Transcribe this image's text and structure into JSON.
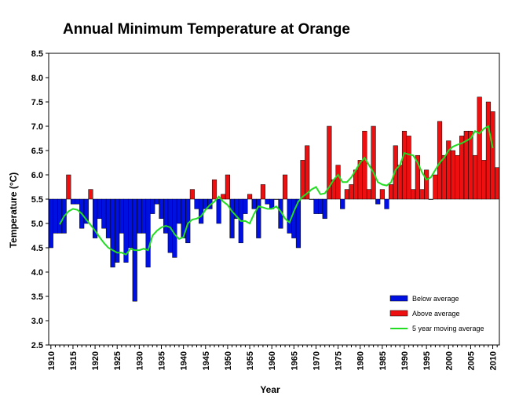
{
  "colors": {
    "below": "#0010e0",
    "above": "#ee1010",
    "moving_average": "#22dd22",
    "axis": "#000000",
    "background": "#ffffff"
  },
  "chart_data": {
    "type": "bar",
    "title": "Annual Minimum Temperature at Orange",
    "xlabel": "Year",
    "ylabel": "Temperature (°C)",
    "ylim": [
      2.5,
      8.5
    ],
    "xlim": [
      1909.5,
      2011.5
    ],
    "baseline": 5.5,
    "yticks": [
      "2.5",
      "3.0",
      "3.5",
      "4.0",
      "4.5",
      "5.0",
      "5.5",
      "6.0",
      "6.5",
      "7.0",
      "7.5",
      "8.0",
      "8.5"
    ],
    "xticks": [
      "1910",
      "1915",
      "1920",
      "1925",
      "1930",
      "1935",
      "1940",
      "1945",
      "1950",
      "1955",
      "1960",
      "1965",
      "1970",
      "1975",
      "1980",
      "1985",
      "1990",
      "1995",
      "2000",
      "2005",
      "2010"
    ],
    "grid": false,
    "legend_position": "bottom-right",
    "categories": [
      1910,
      1911,
      1912,
      1913,
      1914,
      1915,
      1916,
      1917,
      1918,
      1919,
      1920,
      1921,
      1922,
      1923,
      1924,
      1925,
      1926,
      1927,
      1928,
      1929,
      1930,
      1931,
      1932,
      1933,
      1934,
      1935,
      1936,
      1937,
      1938,
      1939,
      1940,
      1941,
      1942,
      1943,
      1944,
      1945,
      1946,
      1947,
      1948,
      1949,
      1950,
      1951,
      1952,
      1953,
      1954,
      1955,
      1956,
      1957,
      1958,
      1959,
      1960,
      1961,
      1962,
      1963,
      1964,
      1965,
      1966,
      1967,
      1968,
      1969,
      1970,
      1971,
      1972,
      1973,
      1974,
      1975,
      1976,
      1977,
      1978,
      1979,
      1980,
      1981,
      1982,
      1983,
      1984,
      1985,
      1986,
      1987,
      1988,
      1989,
      1990,
      1991,
      1992,
      1993,
      1994,
      1995,
      1996,
      1997,
      1998,
      1999,
      2000,
      2001,
      2002,
      2003,
      2004,
      2005,
      2006,
      2007,
      2008,
      2009,
      2010,
      2011
    ],
    "values": [
      4.5,
      4.8,
      4.8,
      4.8,
      6.0,
      5.4,
      5.4,
      4.9,
      5.0,
      5.7,
      4.7,
      5.1,
      4.9,
      4.7,
      4.1,
      4.2,
      4.8,
      4.2,
      4.5,
      3.4,
      4.8,
      4.8,
      4.1,
      5.2,
      5.4,
      5.1,
      4.8,
      4.4,
      4.3,
      5.0,
      4.7,
      4.6,
      5.7,
      5.3,
      5.0,
      5.3,
      5.3,
      5.9,
      5.0,
      5.6,
      6.0,
      4.7,
      5.1,
      4.6,
      5.2,
      5.6,
      5.3,
      4.7,
      5.8,
      5.4,
      5.3,
      5.5,
      4.9,
      6.0,
      4.8,
      4.7,
      4.5,
      6.3,
      6.6,
      5.5,
      5.2,
      5.2,
      5.1,
      7.0,
      5.9,
      6.2,
      5.3,
      5.7,
      5.8,
      6.1,
      6.3,
      6.9,
      5.7,
      7.0,
      5.4,
      5.7,
      5.3,
      5.8,
      6.6,
      6.2,
      6.9,
      6.8,
      5.7,
      6.4,
      5.7,
      6.1,
      5.5,
      6.0,
      7.1,
      6.4,
      6.7,
      6.5,
      6.4,
      6.8,
      6.9,
      6.9,
      6.4,
      7.6,
      6.3,
      7.5,
      7.3,
      6.15
    ],
    "series": [
      {
        "name": "Below average",
        "kind": "bar"
      },
      {
        "name": "Above average",
        "kind": "bar"
      },
      {
        "name": "5 year moving average",
        "kind": "line",
        "x": [
          1912,
          1913,
          1914,
          1915,
          1916,
          1917,
          1918,
          1919,
          1920,
          1921,
          1922,
          1923,
          1924,
          1925,
          1926,
          1927,
          1928,
          1929,
          1930,
          1931,
          1932,
          1933,
          1934,
          1935,
          1936,
          1937,
          1938,
          1939,
          1940,
          1941,
          1942,
          1943,
          1944,
          1945,
          1946,
          1947,
          1948,
          1949,
          1950,
          1951,
          1952,
          1953,
          1954,
          1955,
          1956,
          1957,
          1958,
          1959,
          1960,
          1961,
          1962,
          1963,
          1964,
          1965,
          1966,
          1967,
          1968,
          1969,
          1970,
          1971,
          1972,
          1973,
          1974,
          1975,
          1976,
          1977,
          1978,
          1979,
          1980,
          1981,
          1982,
          1983,
          1984,
          1985,
          1986,
          1987,
          1988,
          1989,
          1990,
          1991,
          1992,
          1993,
          1994,
          1995,
          1996,
          1997,
          1998,
          1999,
          2000,
          2001,
          2002,
          2003,
          2004,
          2005,
          2006,
          2007,
          2008,
          2009,
          2010
        ],
        "values": [
          4.98,
          5.15,
          5.25,
          5.3,
          5.28,
          5.2,
          5.08,
          4.97,
          4.85,
          4.72,
          4.6,
          4.5,
          4.45,
          4.4,
          4.4,
          4.36,
          4.48,
          4.45,
          4.45,
          4.48,
          4.45,
          4.75,
          4.85,
          4.92,
          4.95,
          4.92,
          4.78,
          4.68,
          4.72,
          5.0,
          5.08,
          5.1,
          5.15,
          5.28,
          5.38,
          5.45,
          5.55,
          5.45,
          5.38,
          5.25,
          5.15,
          5.05,
          5.05,
          5.0,
          5.2,
          5.35,
          5.33,
          5.3,
          5.3,
          5.35,
          5.25,
          5.1,
          5.02,
          5.25,
          5.45,
          5.55,
          5.62,
          5.7,
          5.75,
          5.6,
          5.62,
          5.75,
          5.9,
          6.0,
          5.85,
          5.85,
          5.95,
          6.1,
          6.25,
          6.35,
          6.2,
          6.05,
          5.85,
          5.8,
          5.78,
          5.85,
          6.1,
          6.2,
          6.45,
          6.42,
          6.4,
          6.25,
          6.05,
          5.9,
          5.95,
          6.1,
          6.25,
          6.35,
          6.5,
          6.58,
          6.62,
          6.65,
          6.7,
          6.75,
          6.9,
          6.85,
          6.95,
          7.0,
          6.55
        ]
      }
    ]
  }
}
